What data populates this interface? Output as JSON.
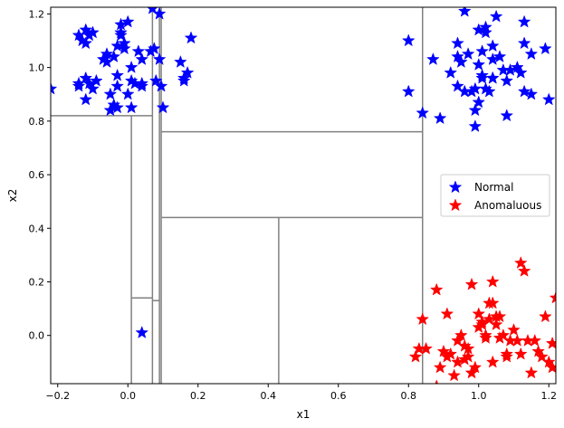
{
  "chart_data": {
    "type": "scatter",
    "xlabel": "x1",
    "ylabel": "x2",
    "xlim": [
      -0.22,
      1.22
    ],
    "ylim": [
      -0.18,
      1.225
    ],
    "xticks": [
      -0.2,
      0.0,
      0.2,
      0.4,
      0.6,
      0.8,
      1.0,
      1.2
    ],
    "xtick_labels": [
      "−0.2",
      "0.0",
      "0.2",
      "0.4",
      "0.6",
      "0.8",
      "1.0",
      "1.2"
    ],
    "yticks": [
      0.0,
      0.2,
      0.4,
      0.6,
      0.8,
      1.0,
      1.2
    ],
    "ytick_labels": [
      "0.0",
      "0.2",
      "0.4",
      "0.6",
      "0.8",
      "1.0",
      "1.2"
    ],
    "grid": false,
    "legend_position": "center-right",
    "marker": "star",
    "series": [
      {
        "name": "Normal",
        "color": "#0000ff",
        "points": [
          [
            -0.22,
            0.92
          ],
          [
            -0.14,
            0.94
          ],
          [
            -0.14,
            0.93
          ],
          [
            -0.14,
            1.12
          ],
          [
            -0.13,
            1.1
          ],
          [
            -0.12,
            1.14
          ],
          [
            -0.12,
            1.09
          ],
          [
            -0.11,
            1.12
          ],
          [
            -0.1,
            1.13
          ],
          [
            -0.12,
            0.96
          ],
          [
            -0.12,
            0.88
          ],
          [
            -0.11,
            0.94
          ],
          [
            -0.1,
            0.92
          ],
          [
            -0.09,
            0.95
          ],
          [
            -0.07,
            1.03
          ],
          [
            -0.06,
            1.05
          ],
          [
            -0.06,
            1.02
          ],
          [
            -0.05,
            0.84
          ],
          [
            -0.05,
            0.9
          ],
          [
            -0.04,
            0.86
          ],
          [
            -0.04,
            1.04
          ],
          [
            -0.03,
            1.08
          ],
          [
            -0.03,
            0.97
          ],
          [
            -0.03,
            0.93
          ],
          [
            -0.03,
            0.85
          ],
          [
            -0.02,
            1.16
          ],
          [
            -0.02,
            1.12
          ],
          [
            -0.02,
            1.13
          ],
          [
            -0.01,
            1.07
          ],
          [
            -0.01,
            1.09
          ],
          [
            0.0,
            1.17
          ],
          [
            0.0,
            0.9
          ],
          [
            0.01,
            0.95
          ],
          [
            0.01,
            1.0
          ],
          [
            0.01,
            0.85
          ],
          [
            0.02,
            0.94
          ],
          [
            0.03,
            1.06
          ],
          [
            0.04,
            0.94
          ],
          [
            0.04,
            1.03
          ],
          [
            0.04,
            0.93
          ],
          [
            0.065,
            1.06
          ],
          [
            0.075,
            1.07
          ],
          [
            0.07,
            1.22
          ],
          [
            0.08,
            0.95
          ],
          [
            0.09,
            1.2
          ],
          [
            0.09,
            1.03
          ],
          [
            0.095,
            0.93
          ],
          [
            0.1,
            0.85
          ],
          [
            0.15,
            1.02
          ],
          [
            0.16,
            0.95
          ],
          [
            0.16,
            0.96
          ],
          [
            0.17,
            0.98
          ],
          [
            0.18,
            1.11
          ],
          [
            0.04,
            0.01
          ],
          [
            0.8,
            1.1
          ],
          [
            0.8,
            0.91
          ],
          [
            0.84,
            0.83
          ],
          [
            0.87,
            1.03
          ],
          [
            0.89,
            0.81
          ],
          [
            0.92,
            0.98
          ],
          [
            0.94,
            1.04
          ],
          [
            0.94,
            1.09
          ],
          [
            0.94,
            0.93
          ],
          [
            0.95,
            1.02
          ],
          [
            0.96,
            0.91
          ],
          [
            0.96,
            1.21
          ],
          [
            0.97,
            1.05
          ],
          [
            0.98,
            0.91
          ],
          [
            0.99,
            0.84
          ],
          [
            0.99,
            0.78
          ],
          [
            0.99,
            0.92
          ],
          [
            1.0,
            1.14
          ],
          [
            1.0,
            1.01
          ],
          [
            1.0,
            0.87
          ],
          [
            1.01,
            1.06
          ],
          [
            1.01,
            0.96
          ],
          [
            1.01,
            0.97
          ],
          [
            1.02,
            1.13
          ],
          [
            1.02,
            0.92
          ],
          [
            1.02,
            1.15
          ],
          [
            1.03,
            0.91
          ],
          [
            1.04,
            1.08
          ],
          [
            1.04,
            1.03
          ],
          [
            1.04,
            0.96
          ],
          [
            1.04,
            0.96
          ],
          [
            1.05,
            1.19
          ],
          [
            1.06,
            1.04
          ],
          [
            1.07,
            0.99
          ],
          [
            1.08,
            0.95
          ],
          [
            1.08,
            0.82
          ],
          [
            1.09,
            0.99
          ],
          [
            1.11,
            1.0
          ],
          [
            1.12,
            0.98
          ],
          [
            1.13,
            1.17
          ],
          [
            1.13,
            0.91
          ],
          [
            1.13,
            1.09
          ],
          [
            1.15,
            0.9
          ],
          [
            1.15,
            1.05
          ],
          [
            1.19,
            1.07
          ],
          [
            1.2,
            0.88
          ]
        ]
      },
      {
        "name": "Anomaluous",
        "color": "#ff0000",
        "points": [
          [
            0.82,
            -0.08
          ],
          [
            0.83,
            -0.05
          ],
          [
            0.84,
            0.06
          ],
          [
            0.85,
            -0.05
          ],
          [
            0.88,
            -0.19
          ],
          [
            0.88,
            0.17
          ],
          [
            0.89,
            -0.12
          ],
          [
            0.9,
            -0.06
          ],
          [
            0.91,
            -0.08
          ],
          [
            0.91,
            0.08
          ],
          [
            0.92,
            -0.07
          ],
          [
            0.93,
            -0.15
          ],
          [
            0.94,
            -0.02
          ],
          [
            0.94,
            -0.1
          ],
          [
            0.95,
            0.0
          ],
          [
            0.96,
            -0.04
          ],
          [
            0.96,
            -0.09
          ],
          [
            0.97,
            -0.05
          ],
          [
            0.97,
            -0.08
          ],
          [
            0.98,
            -0.14
          ],
          [
            0.98,
            0.19
          ],
          [
            0.99,
            -0.12
          ],
          [
            1.0,
            0.03
          ],
          [
            1.0,
            0.08
          ],
          [
            1.01,
            0.05
          ],
          [
            1.01,
            0.04
          ],
          [
            1.02,
            -0.01
          ],
          [
            1.02,
            0.0
          ],
          [
            1.03,
            0.12
          ],
          [
            1.03,
            0.06
          ],
          [
            1.04,
            0.2
          ],
          [
            1.04,
            0.12
          ],
          [
            1.04,
            -0.1
          ],
          [
            1.05,
            0.07
          ],
          [
            1.05,
            0.04
          ],
          [
            1.06,
            -0.01
          ],
          [
            1.06,
            0.07
          ],
          [
            1.07,
            0.0
          ],
          [
            1.08,
            -0.08
          ],
          [
            1.08,
            -0.07
          ],
          [
            1.09,
            -0.02
          ],
          [
            1.1,
            0.02
          ],
          [
            1.11,
            -0.02
          ],
          [
            1.12,
            -0.07
          ],
          [
            1.12,
            0.27
          ],
          [
            1.13,
            0.24
          ],
          [
            1.14,
            -0.02
          ],
          [
            1.15,
            -0.14
          ],
          [
            1.16,
            -0.02
          ],
          [
            1.17,
            -0.06
          ],
          [
            1.18,
            -0.08
          ],
          [
            1.19,
            0.07
          ],
          [
            1.2,
            -0.1
          ],
          [
            1.21,
            -0.03
          ],
          [
            1.21,
            -0.12
          ],
          [
            1.22,
            0.14
          ]
        ]
      }
    ],
    "partition_lines": [
      {
        "orient": "v",
        "at": 0.84,
        "from": -0.18,
        "to": 1.225
      },
      {
        "orient": "h",
        "at": 0.82,
        "from": -0.22,
        "to": 0.07
      },
      {
        "orient": "v",
        "at": 0.07,
        "from": -0.18,
        "to": 1.225
      },
      {
        "orient": "v",
        "at": 0.095,
        "from": -0.18,
        "to": 1.225
      },
      {
        "orient": "v",
        "at": 0.09,
        "from": -0.18,
        "to": 1.225
      },
      {
        "orient": "v",
        "at": 0.01,
        "from": -0.18,
        "to": 0.82
      },
      {
        "orient": "h",
        "at": 0.14,
        "from": 0.01,
        "to": 0.07
      },
      {
        "orient": "h",
        "at": 0.13,
        "from": 0.07,
        "to": 0.09
      },
      {
        "orient": "h",
        "at": 0.76,
        "from": 0.095,
        "to": 0.84
      },
      {
        "orient": "h",
        "at": 0.44,
        "from": 0.095,
        "to": 0.84
      },
      {
        "orient": "v",
        "at": 0.43,
        "from": -0.18,
        "to": 0.44
      }
    ]
  }
}
